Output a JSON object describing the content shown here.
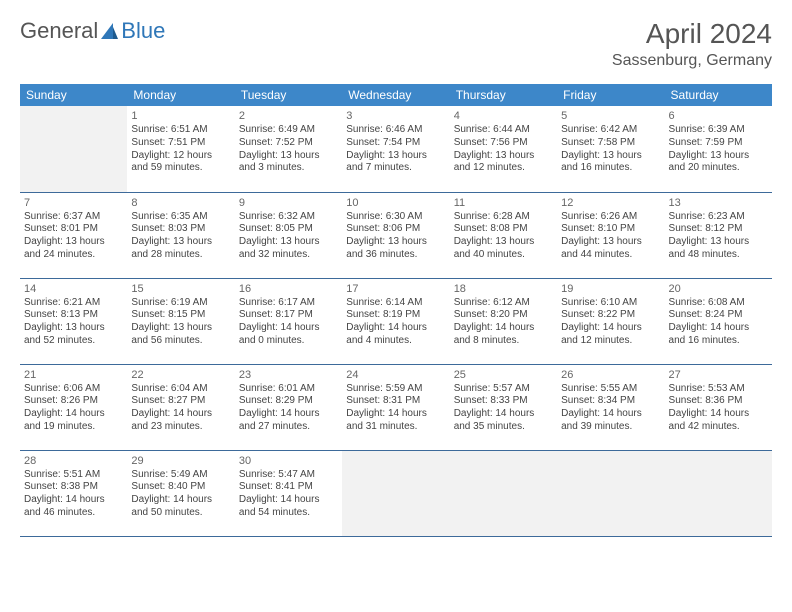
{
  "brand": {
    "part1": "General",
    "part2": "Blue"
  },
  "page": {
    "title": "April 2024",
    "location": "Sassenburg, Germany"
  },
  "colors": {
    "header_bg": "#3d87c9",
    "header_text": "#ffffff",
    "row_border": "#3d6a9a",
    "blank_bg": "#f2f2f2",
    "text": "#444",
    "brand_accent": "#2f77b8"
  },
  "days": [
    "Sunday",
    "Monday",
    "Tuesday",
    "Wednesday",
    "Thursday",
    "Friday",
    "Saturday"
  ],
  "weeks": [
    [
      null,
      {
        "n": "1",
        "sr": "Sunrise: 6:51 AM",
        "ss": "Sunset: 7:51 PM",
        "dl": "Daylight: 12 hours and 59 minutes."
      },
      {
        "n": "2",
        "sr": "Sunrise: 6:49 AM",
        "ss": "Sunset: 7:52 PM",
        "dl": "Daylight: 13 hours and 3 minutes."
      },
      {
        "n": "3",
        "sr": "Sunrise: 6:46 AM",
        "ss": "Sunset: 7:54 PM",
        "dl": "Daylight: 13 hours and 7 minutes."
      },
      {
        "n": "4",
        "sr": "Sunrise: 6:44 AM",
        "ss": "Sunset: 7:56 PM",
        "dl": "Daylight: 13 hours and 12 minutes."
      },
      {
        "n": "5",
        "sr": "Sunrise: 6:42 AM",
        "ss": "Sunset: 7:58 PM",
        "dl": "Daylight: 13 hours and 16 minutes."
      },
      {
        "n": "6",
        "sr": "Sunrise: 6:39 AM",
        "ss": "Sunset: 7:59 PM",
        "dl": "Daylight: 13 hours and 20 minutes."
      }
    ],
    [
      {
        "n": "7",
        "sr": "Sunrise: 6:37 AM",
        "ss": "Sunset: 8:01 PM",
        "dl": "Daylight: 13 hours and 24 minutes."
      },
      {
        "n": "8",
        "sr": "Sunrise: 6:35 AM",
        "ss": "Sunset: 8:03 PM",
        "dl": "Daylight: 13 hours and 28 minutes."
      },
      {
        "n": "9",
        "sr": "Sunrise: 6:32 AM",
        "ss": "Sunset: 8:05 PM",
        "dl": "Daylight: 13 hours and 32 minutes."
      },
      {
        "n": "10",
        "sr": "Sunrise: 6:30 AM",
        "ss": "Sunset: 8:06 PM",
        "dl": "Daylight: 13 hours and 36 minutes."
      },
      {
        "n": "11",
        "sr": "Sunrise: 6:28 AM",
        "ss": "Sunset: 8:08 PM",
        "dl": "Daylight: 13 hours and 40 minutes."
      },
      {
        "n": "12",
        "sr": "Sunrise: 6:26 AM",
        "ss": "Sunset: 8:10 PM",
        "dl": "Daylight: 13 hours and 44 minutes."
      },
      {
        "n": "13",
        "sr": "Sunrise: 6:23 AM",
        "ss": "Sunset: 8:12 PM",
        "dl": "Daylight: 13 hours and 48 minutes."
      }
    ],
    [
      {
        "n": "14",
        "sr": "Sunrise: 6:21 AM",
        "ss": "Sunset: 8:13 PM",
        "dl": "Daylight: 13 hours and 52 minutes."
      },
      {
        "n": "15",
        "sr": "Sunrise: 6:19 AM",
        "ss": "Sunset: 8:15 PM",
        "dl": "Daylight: 13 hours and 56 minutes."
      },
      {
        "n": "16",
        "sr": "Sunrise: 6:17 AM",
        "ss": "Sunset: 8:17 PM",
        "dl": "Daylight: 14 hours and 0 minutes."
      },
      {
        "n": "17",
        "sr": "Sunrise: 6:14 AM",
        "ss": "Sunset: 8:19 PM",
        "dl": "Daylight: 14 hours and 4 minutes."
      },
      {
        "n": "18",
        "sr": "Sunrise: 6:12 AM",
        "ss": "Sunset: 8:20 PM",
        "dl": "Daylight: 14 hours and 8 minutes."
      },
      {
        "n": "19",
        "sr": "Sunrise: 6:10 AM",
        "ss": "Sunset: 8:22 PM",
        "dl": "Daylight: 14 hours and 12 minutes."
      },
      {
        "n": "20",
        "sr": "Sunrise: 6:08 AM",
        "ss": "Sunset: 8:24 PM",
        "dl": "Daylight: 14 hours and 16 minutes."
      }
    ],
    [
      {
        "n": "21",
        "sr": "Sunrise: 6:06 AM",
        "ss": "Sunset: 8:26 PM",
        "dl": "Daylight: 14 hours and 19 minutes."
      },
      {
        "n": "22",
        "sr": "Sunrise: 6:04 AM",
        "ss": "Sunset: 8:27 PM",
        "dl": "Daylight: 14 hours and 23 minutes."
      },
      {
        "n": "23",
        "sr": "Sunrise: 6:01 AM",
        "ss": "Sunset: 8:29 PM",
        "dl": "Daylight: 14 hours and 27 minutes."
      },
      {
        "n": "24",
        "sr": "Sunrise: 5:59 AM",
        "ss": "Sunset: 8:31 PM",
        "dl": "Daylight: 14 hours and 31 minutes."
      },
      {
        "n": "25",
        "sr": "Sunrise: 5:57 AM",
        "ss": "Sunset: 8:33 PM",
        "dl": "Daylight: 14 hours and 35 minutes."
      },
      {
        "n": "26",
        "sr": "Sunrise: 5:55 AM",
        "ss": "Sunset: 8:34 PM",
        "dl": "Daylight: 14 hours and 39 minutes."
      },
      {
        "n": "27",
        "sr": "Sunrise: 5:53 AM",
        "ss": "Sunset: 8:36 PM",
        "dl": "Daylight: 14 hours and 42 minutes."
      }
    ],
    [
      {
        "n": "28",
        "sr": "Sunrise: 5:51 AM",
        "ss": "Sunset: 8:38 PM",
        "dl": "Daylight: 14 hours and 46 minutes."
      },
      {
        "n": "29",
        "sr": "Sunrise: 5:49 AM",
        "ss": "Sunset: 8:40 PM",
        "dl": "Daylight: 14 hours and 50 minutes."
      },
      {
        "n": "30",
        "sr": "Sunrise: 5:47 AM",
        "ss": "Sunset: 8:41 PM",
        "dl": "Daylight: 14 hours and 54 minutes."
      },
      null,
      null,
      null,
      null
    ]
  ]
}
